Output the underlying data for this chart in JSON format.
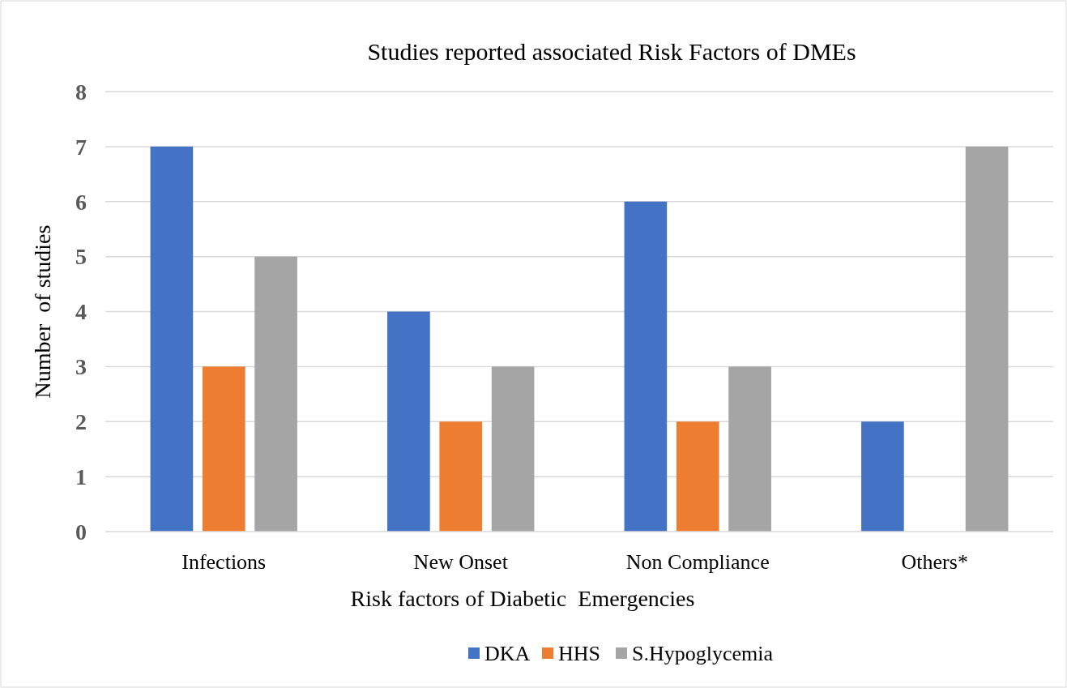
{
  "chart_data": {
    "type": "bar",
    "title": "Studies reported associated Risk Factors of DMEs",
    "xlabel": "Risk factors of Diabetic  Emergencies",
    "ylabel": "Number  of studies",
    "categories": [
      "Infections",
      "New Onset",
      "Non Compliance",
      "Others*"
    ],
    "series": [
      {
        "name": "DKA",
        "color": "#4472c4",
        "values": [
          7,
          4,
          6,
          2
        ]
      },
      {
        "name": "HHS",
        "color": "#ed7d31",
        "values": [
          3,
          2,
          2,
          0
        ]
      },
      {
        "name": "S.Hypoglycemia",
        "color": "#a5a5a5",
        "values": [
          5,
          3,
          3,
          7
        ]
      }
    ],
    "ylim": [
      0,
      8
    ],
    "yticks": [
      0,
      1,
      2,
      3,
      4,
      5,
      6,
      7,
      8
    ],
    "grid": "y",
    "legend": "bottom"
  }
}
